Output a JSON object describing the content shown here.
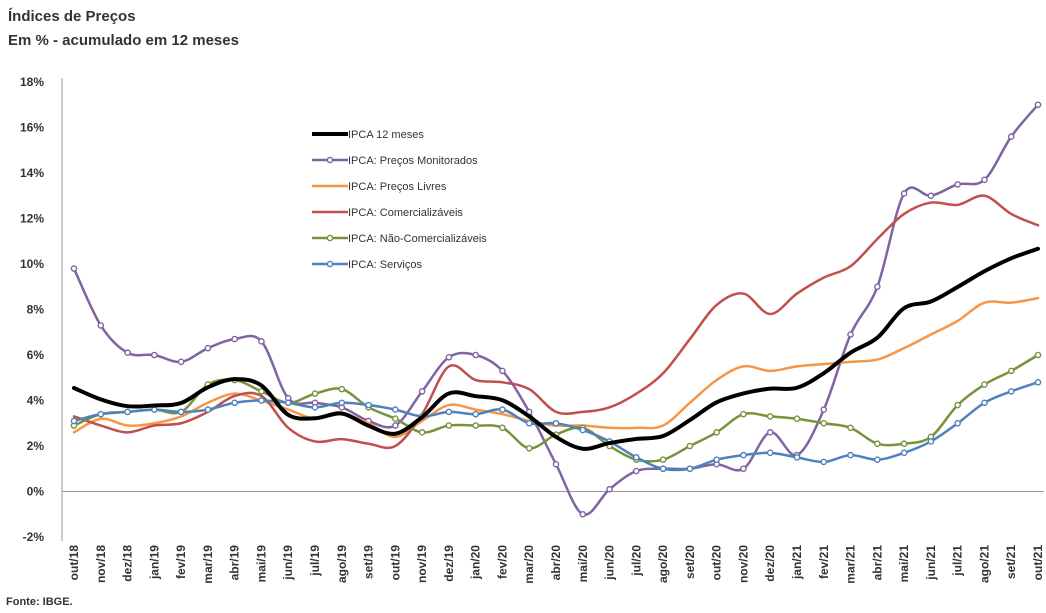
{
  "title": "Índices de Preços",
  "subtitle": "Em % - acumulado em 12 meses",
  "source": "Fonte: IBGE.",
  "chart_data": {
    "type": "line",
    "title": "Índices de Preços",
    "subtitle": "Em % - acumulado em 12 meses",
    "xlabel": "",
    "ylabel": "",
    "ylim": [
      -2,
      18
    ],
    "yticks": [
      -2,
      0,
      2,
      4,
      6,
      8,
      10,
      12,
      14,
      16,
      18
    ],
    "ytick_labels": [
      "-2%",
      "0%",
      "2%",
      "4%",
      "6%",
      "8%",
      "10%",
      "12%",
      "14%",
      "16%",
      "18%"
    ],
    "grid": false,
    "legend_position": "top-center",
    "categories": [
      "out/18",
      "nov/18",
      "dez/18",
      "jan/19",
      "fev/19",
      "mar/19",
      "abr/19",
      "mai/19",
      "jun/19",
      "jul/19",
      "ago/19",
      "set/19",
      "out/19",
      "nov/19",
      "dez/19",
      "jan/20",
      "fev/20",
      "mar/20",
      "abr/20",
      "mai/20",
      "jun/20",
      "jul/20",
      "ago/20",
      "set/20",
      "out/20",
      "nov/20",
      "dez/20",
      "jan/21",
      "fev/21",
      "mar/21",
      "abr/21",
      "mai/21",
      "jun/21",
      "jul/21",
      "ago/21",
      "set/21",
      "out/21"
    ],
    "series": [
      {
        "name": "IPCA 12 meses",
        "color": "#000000",
        "markers": false,
        "width": 4,
        "values": [
          4.55,
          4.05,
          3.75,
          3.78,
          3.89,
          4.58,
          4.94,
          4.66,
          3.37,
          3.22,
          3.43,
          2.89,
          2.54,
          3.27,
          4.31,
          4.19,
          4.01,
          3.3,
          2.4,
          1.88,
          2.13,
          2.31,
          2.44,
          3.14,
          3.92,
          4.31,
          4.52,
          4.56,
          5.2,
          6.1,
          6.76,
          8.06,
          8.35,
          8.99,
          9.68,
          10.25,
          10.67
        ]
      },
      {
        "name": "IPCA: Preços Monitorados",
        "color": "#8064A2",
        "markers": true,
        "width": 2.5,
        "values": [
          9.8,
          7.3,
          6.1,
          6.0,
          5.7,
          6.3,
          6.7,
          6.6,
          4.1,
          3.9,
          3.7,
          3.1,
          2.9,
          4.4,
          5.9,
          6.0,
          5.3,
          3.5,
          1.2,
          -1.0,
          0.1,
          0.9,
          1.0,
          1.0,
          1.2,
          1.0,
          2.6,
          1.6,
          3.6,
          6.9,
          9.0,
          13.1,
          13.0,
          13.5,
          13.7,
          15.6,
          17.0
        ]
      },
      {
        "name": "IPCA: Preços Livres",
        "color": "#F79646",
        "markers": false,
        "width": 2.5,
        "values": [
          2.6,
          3.2,
          2.9,
          3.0,
          3.3,
          3.9,
          4.3,
          4.0,
          3.6,
          3.2,
          3.4,
          3.0,
          2.4,
          3.1,
          3.8,
          3.6,
          3.4,
          3.1,
          2.9,
          2.9,
          2.8,
          2.8,
          2.9,
          3.9,
          4.9,
          5.5,
          5.3,
          5.5,
          5.6,
          5.7,
          5.8,
          6.3,
          6.9,
          7.5,
          8.3,
          8.3,
          8.5
        ]
      },
      {
        "name": "IPCA: Comercializáveis",
        "color": "#C0504D",
        "markers": false,
        "width": 2.5,
        "values": [
          3.3,
          2.9,
          2.6,
          2.9,
          3.0,
          3.5,
          4.2,
          4.2,
          2.8,
          2.2,
          2.3,
          2.1,
          2.0,
          3.4,
          5.5,
          4.9,
          4.8,
          4.5,
          3.5,
          3.5,
          3.7,
          4.3,
          5.2,
          6.7,
          8.2,
          8.7,
          7.8,
          8.7,
          9.4,
          9.9,
          11.1,
          12.2,
          12.7,
          12.6,
          13.0,
          12.2,
          11.7
        ]
      },
      {
        "name": "IPCA: Não-Comercializáveis",
        "color": "#77933C",
        "markers": true,
        "width": 2.5,
        "values": [
          2.9,
          3.4,
          3.5,
          3.6,
          3.5,
          4.7,
          4.9,
          4.4,
          3.9,
          4.3,
          4.5,
          3.7,
          3.2,
          2.6,
          2.9,
          2.9,
          2.8,
          1.9,
          2.5,
          2.8,
          2.0,
          1.4,
          1.4,
          2.0,
          2.6,
          3.4,
          3.3,
          3.2,
          3.0,
          2.8,
          2.1,
          2.1,
          2.4,
          3.8,
          4.7,
          5.3,
          6.0
        ]
      },
      {
        "name": "IPCA: Serviços",
        "color": "#4F81BD",
        "markers": true,
        "width": 2.5,
        "values": [
          3.1,
          3.4,
          3.5,
          3.6,
          3.5,
          3.6,
          3.9,
          4.0,
          3.9,
          3.7,
          3.9,
          3.8,
          3.6,
          3.3,
          3.5,
          3.4,
          3.6,
          3.0,
          3.0,
          2.7,
          2.2,
          1.5,
          1.0,
          1.0,
          1.4,
          1.6,
          1.7,
          1.5,
          1.3,
          1.6,
          1.4,
          1.7,
          2.2,
          3.0,
          3.9,
          4.4,
          4.8
        ]
      }
    ]
  }
}
